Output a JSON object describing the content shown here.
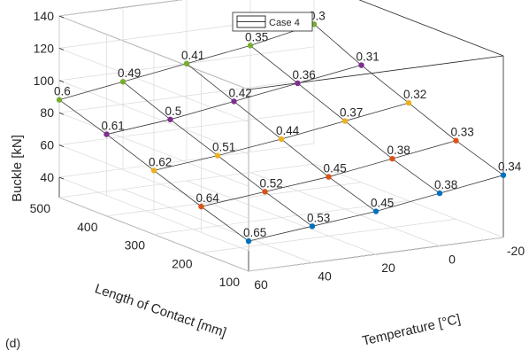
{
  "panel_label": "(d)",
  "chart_data": {
    "type": "surface",
    "xlabel": "Temperature [°C]",
    "ylabel": "Length of Contact [mm]",
    "zlabel": "Buckle [kN]",
    "legend": {
      "entries": [
        "Case 4"
      ],
      "placement": "top"
    },
    "grid": true,
    "x_ticks": [
      -20,
      0,
      20,
      40,
      60
    ],
    "y_ticks": [
      100,
      200,
      300,
      400,
      500
    ],
    "z_ticks": [
      40,
      60,
      80,
      100,
      120,
      140
    ],
    "x_tick_labels": [
      "-20",
      "0",
      "20",
      "40",
      "60"
    ],
    "y_tick_labels": [
      "100",
      "200",
      "300",
      "400",
      "500"
    ],
    "z_tick_labels": [
      "40",
      "60",
      "80",
      "100",
      "120",
      "140"
    ],
    "xlim": [
      -20,
      60
    ],
    "ylim": [
      100,
      500
    ],
    "zlim": [
      40,
      140
    ],
    "temperatures": [
      -20,
      0,
      20,
      40,
      60
    ],
    "lengths": [
      100,
      200,
      300,
      400,
      500
    ],
    "series_colors": [
      "#0072bd",
      "#d95319",
      "#edb120",
      "#7e2f8e",
      "#77ac30"
    ],
    "points": [
      {
        "t": -20,
        "l": 100,
        "z": 66,
        "label": "0.34"
      },
      {
        "t": -20,
        "l": 200,
        "z": 76,
        "label": "0.33"
      },
      {
        "t": -20,
        "l": 300,
        "z": 88,
        "label": "0.32"
      },
      {
        "t": -20,
        "l": 400,
        "z": 100,
        "label": "0.31"
      },
      {
        "t": -20,
        "l": 500,
        "z": 114,
        "label": "0.3"
      },
      {
        "t": 0,
        "l": 100,
        "z": 60,
        "label": "0.38"
      },
      {
        "t": 0,
        "l": 200,
        "z": 70,
        "label": "0.38"
      },
      {
        "t": 0,
        "l": 300,
        "z": 82,
        "label": "0.37"
      },
      {
        "t": 0,
        "l": 400,
        "z": 94,
        "label": "0.36"
      },
      {
        "t": 0,
        "l": 500,
        "z": 106,
        "label": "0.35"
      },
      {
        "t": 20,
        "l": 100,
        "z": 54,
        "label": "0.45"
      },
      {
        "t": 20,
        "l": 200,
        "z": 64,
        "label": "0.45"
      },
      {
        "t": 20,
        "l": 300,
        "z": 76,
        "label": "0.44"
      },
      {
        "t": 20,
        "l": 400,
        "z": 88,
        "label": "0.42"
      },
      {
        "t": 20,
        "l": 500,
        "z": 100,
        "label": "0.41"
      },
      {
        "t": 40,
        "l": 100,
        "z": 50,
        "label": "0.53"
      },
      {
        "t": 40,
        "l": 200,
        "z": 60,
        "label": "0.52"
      },
      {
        "t": 40,
        "l": 300,
        "z": 71,
        "label": "0.51"
      },
      {
        "t": 40,
        "l": 400,
        "z": 82,
        "label": "0.5"
      },
      {
        "t": 40,
        "l": 500,
        "z": 94,
        "label": "0.49"
      },
      {
        "t": 60,
        "l": 100,
        "z": 46,
        "label": "0.65"
      },
      {
        "t": 60,
        "l": 200,
        "z": 56,
        "label": "0.64"
      },
      {
        "t": 60,
        "l": 300,
        "z": 67,
        "label": "0.62"
      },
      {
        "t": 60,
        "l": 400,
        "z": 78,
        "label": "0.61"
      },
      {
        "t": 60,
        "l": 500,
        "z": 88,
        "label": "0.6"
      }
    ]
  }
}
